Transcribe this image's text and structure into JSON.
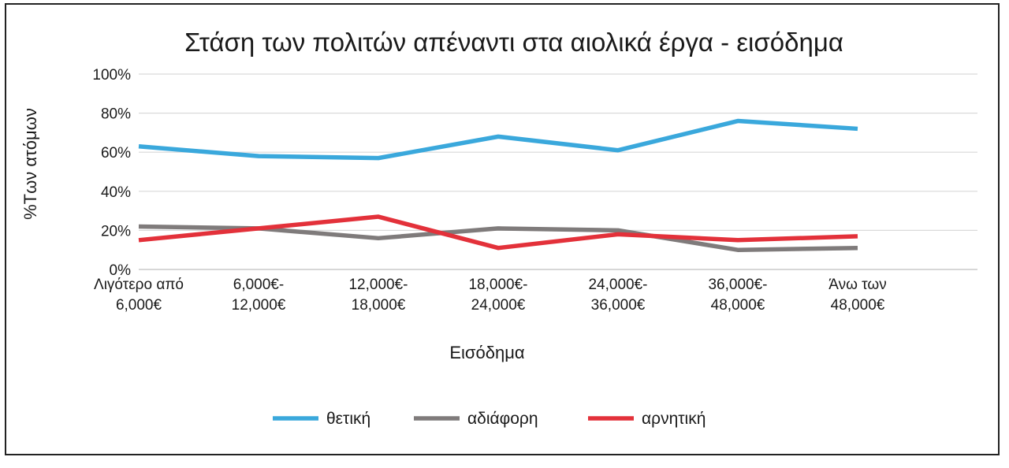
{
  "chart_data": {
    "type": "line",
    "title": "Στάση των πολιτών απέναντι στα αιολικά έργα - εισόδημα",
    "xlabel": "Εισόδημα",
    "ylabel": "%Των ατόμων",
    "ylim": [
      0,
      100
    ],
    "yticks": [
      "0%",
      "20%",
      "40%",
      "60%",
      "80%",
      "100%"
    ],
    "ytick_values": [
      0,
      20,
      40,
      60,
      80,
      100
    ],
    "grid": true,
    "legend_position": "bottom",
    "categories": [
      [
        "Λιγότερο από",
        "6,000€"
      ],
      [
        "6,000€-",
        "12,000€"
      ],
      [
        "12,000€-",
        "18,000€"
      ],
      [
        "18,000€-",
        "24,000€"
      ],
      [
        "24,000€-",
        "36,000€"
      ],
      [
        "36,000€-",
        "48,000€"
      ],
      [
        "Άνω των",
        "48,000€"
      ]
    ],
    "series": [
      {
        "name": "θετική",
        "color": "#3aa8dc",
        "values": [
          63,
          58,
          57,
          68,
          61,
          76,
          72
        ]
      },
      {
        "name": "αδιάφορη",
        "color": "#7f7b7b",
        "values": [
          22,
          21,
          16,
          21,
          20,
          10,
          11
        ]
      },
      {
        "name": "αρνητική",
        "color": "#e3313a",
        "values": [
          15,
          21,
          27,
          11,
          18,
          15,
          17
        ]
      }
    ]
  }
}
